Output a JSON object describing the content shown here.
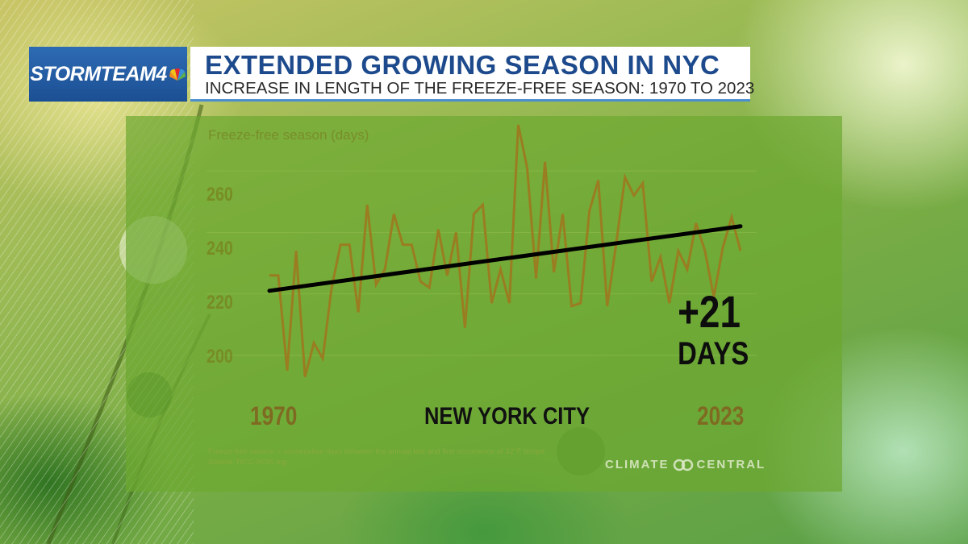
{
  "header": {
    "brand": "STORMTEAM4",
    "title": "EXTENDED GROWING SEASON IN NYC",
    "subtitle": "INCREASE IN LENGTH OF THE FREEZE-FREE SEASON:  1970 TO 2023"
  },
  "colors": {
    "line": "#9a7d21",
    "trend": "#000000",
    "panel": "#6ca830",
    "title": "#1d4a8c",
    "brand_bg": "#1c4f93"
  },
  "icons": [
    "peacock-icon",
    "climate-central-logo-icon"
  ],
  "chart_data": {
    "type": "line",
    "title": "",
    "ylabel": "Freeze-free season (days)",
    "xlabel": "",
    "ylim": [
      190,
      270
    ],
    "yticks": [
      200,
      220,
      240,
      260
    ],
    "xticks": [
      "1970",
      "2023"
    ],
    "grid": true,
    "x": [
      1970,
      1971,
      1972,
      1973,
      1974,
      1975,
      1976,
      1977,
      1978,
      1979,
      1980,
      1981,
      1982,
      1983,
      1984,
      1985,
      1986,
      1987,
      1988,
      1989,
      1990,
      1991,
      1992,
      1993,
      1994,
      1995,
      1996,
      1997,
      1998,
      1999,
      2000,
      2001,
      2002,
      2003,
      2004,
      2005,
      2006,
      2007,
      2008,
      2009,
      2010,
      2011,
      2012,
      2013,
      2014,
      2015,
      2016,
      2017,
      2018,
      2019,
      2020,
      2021,
      2022,
      2023
    ],
    "series": [
      {
        "values": [
          226,
          226,
          195,
          234,
          193,
          204,
          199,
          222,
          236,
          236,
          214,
          249,
          223,
          228,
          246,
          236,
          236,
          224,
          222,
          241,
          226,
          240,
          209,
          246,
          249,
          217,
          228,
          217,
          275,
          261,
          225,
          263,
          227,
          246,
          216,
          217,
          247,
          257,
          216,
          236,
          258,
          252,
          256,
          224,
          232,
          217,
          234,
          228,
          243,
          234,
          219,
          235,
          245,
          234
        ],
        "trend": [
          221,
          242
        ]
      }
    ],
    "annotation": {
      "change": "+21",
      "unit": "DAYS",
      "location": "NEW YORK CITY"
    },
    "footnote_lines": [
      "Freeze-free season = consecutive days between the annual last and first occurrence of 32°F temps",
      "Source: RCC-ACIS.org"
    ],
    "source_logo": "CLIMATE CENTRAL"
  }
}
